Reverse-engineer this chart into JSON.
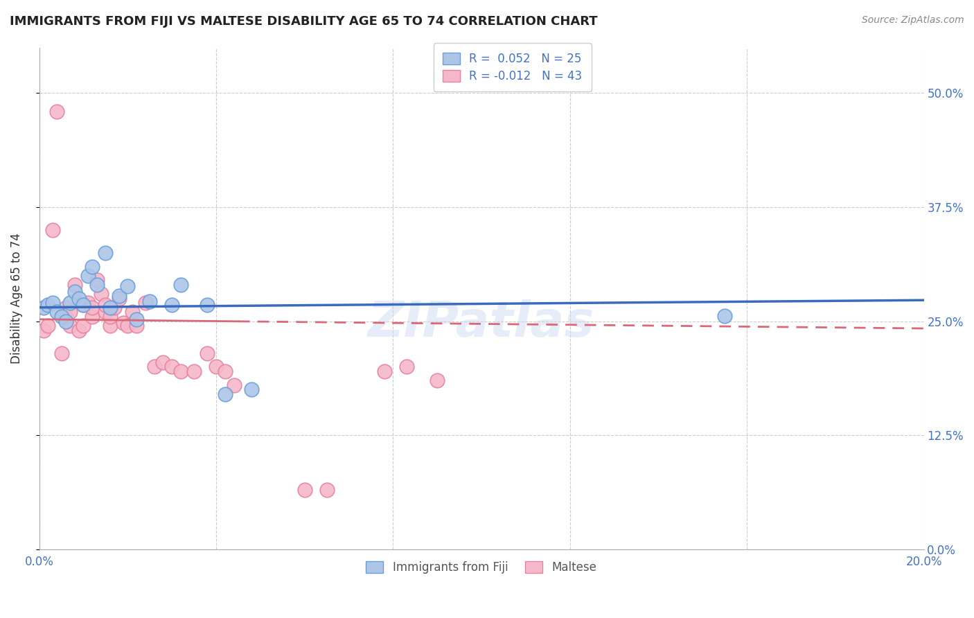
{
  "title": "IMMIGRANTS FROM FIJI VS MALTESE DISABILITY AGE 65 TO 74 CORRELATION CHART",
  "source": "Source: ZipAtlas.com",
  "ylabel": "Disability Age 65 to 74",
  "xlim": [
    0.0,
    0.2
  ],
  "ylim": [
    0.0,
    0.55
  ],
  "yticks": [
    0.0,
    0.125,
    0.25,
    0.375,
    0.5
  ],
  "ytick_labels": [
    "0.0%",
    "12.5%",
    "25.0%",
    "37.5%",
    "50.0%"
  ],
  "xticks": [
    0.0,
    0.04,
    0.08,
    0.12,
    0.16,
    0.2
  ],
  "xtick_labels": [
    "0.0%",
    "",
    "",
    "",
    "",
    "20.0%"
  ],
  "fiji_color": "#adc6e8",
  "maltese_color": "#f5b8ca",
  "fiji_edge_color": "#6a9fd8",
  "maltese_edge_color": "#e8829e",
  "trend_fiji_color": "#3a6bbf",
  "trend_maltese_color": "#d96878",
  "fiji_R": 0.052,
  "fiji_N": 25,
  "maltese_R": -0.012,
  "maltese_N": 43,
  "watermark": "ZIPatlas",
  "fiji_x": [
    0.001,
    0.002,
    0.003,
    0.004,
    0.005,
    0.006,
    0.007,
    0.008,
    0.009,
    0.01,
    0.011,
    0.012,
    0.013,
    0.015,
    0.016,
    0.018,
    0.02,
    0.022,
    0.025,
    0.03,
    0.032,
    0.038,
    0.042,
    0.048,
    0.155
  ],
  "fiji_y": [
    0.265,
    0.268,
    0.27,
    0.26,
    0.255,
    0.25,
    0.27,
    0.282,
    0.275,
    0.268,
    0.3,
    0.31,
    0.29,
    0.325,
    0.265,
    0.278,
    0.288,
    0.252,
    0.272,
    0.268,
    0.29,
    0.268,
    0.17,
    0.175,
    0.256
  ],
  "maltese_x": [
    0.001,
    0.002,
    0.003,
    0.004,
    0.005,
    0.006,
    0.006,
    0.007,
    0.007,
    0.008,
    0.009,
    0.01,
    0.01,
    0.011,
    0.012,
    0.012,
    0.013,
    0.014,
    0.015,
    0.015,
    0.016,
    0.016,
    0.017,
    0.018,
    0.019,
    0.02,
    0.021,
    0.022,
    0.024,
    0.026,
    0.028,
    0.03,
    0.032,
    0.035,
    0.038,
    0.04,
    0.042,
    0.044,
    0.06,
    0.065,
    0.078,
    0.083,
    0.09
  ],
  "maltese_y": [
    0.24,
    0.245,
    0.35,
    0.48,
    0.215,
    0.255,
    0.265,
    0.245,
    0.26,
    0.29,
    0.24,
    0.268,
    0.245,
    0.27,
    0.255,
    0.265,
    0.295,
    0.28,
    0.26,
    0.268,
    0.245,
    0.255,
    0.265,
    0.275,
    0.248,
    0.245,
    0.26,
    0.245,
    0.27,
    0.2,
    0.205,
    0.2,
    0.195,
    0.195,
    0.215,
    0.2,
    0.195,
    0.18,
    0.065,
    0.065,
    0.195,
    0.2,
    0.185
  ]
}
